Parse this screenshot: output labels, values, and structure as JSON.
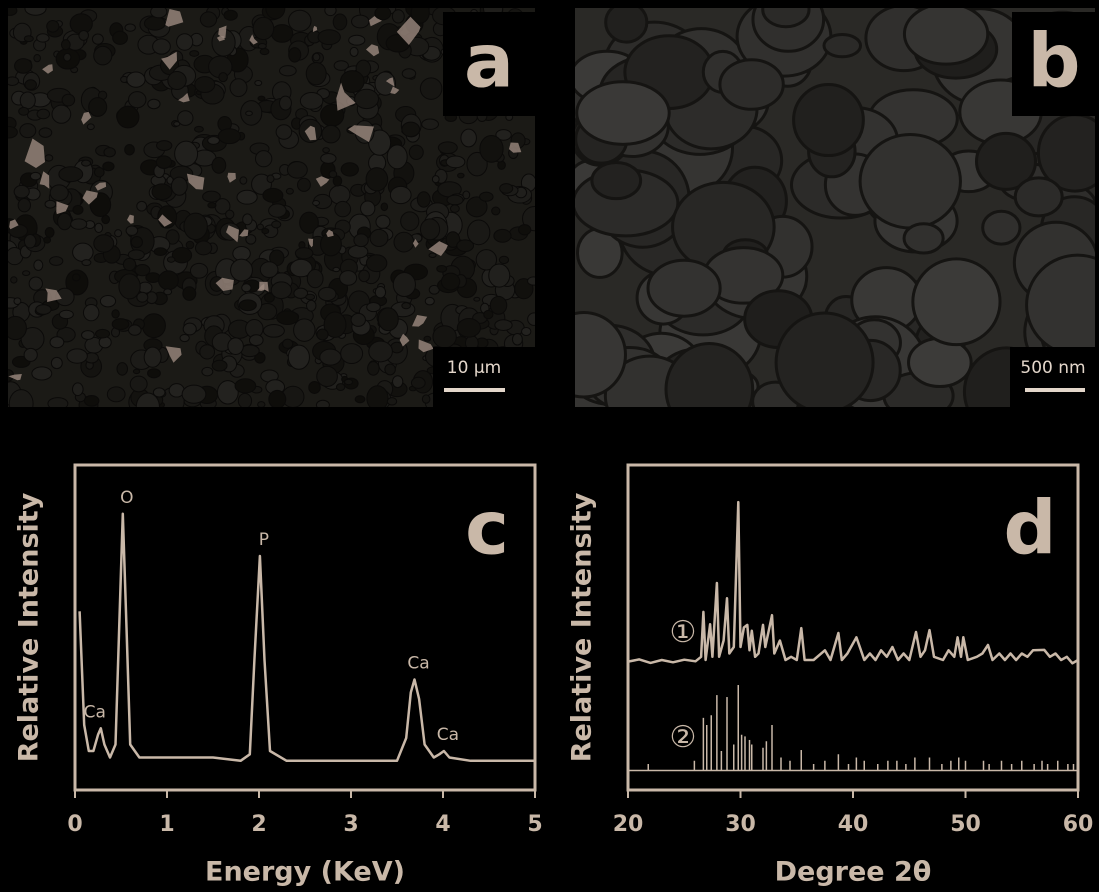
{
  "panels": [
    {
      "label": "a",
      "scale_bar": "10 µm"
    },
    {
      "label": "b",
      "scale_bar": "500 nm"
    }
  ],
  "chart_data": [
    {
      "type": "line",
      "panel": "c",
      "xlabel": "Energy (KeV)",
      "ylabel": "Relative Intensity",
      "color": "#c9b8a8",
      "xlim": [
        0,
        5
      ],
      "xticks": [
        0,
        1,
        2,
        3,
        4,
        5
      ],
      "ylim": [
        0,
        100
      ],
      "x": [
        0.05,
        0.1,
        0.15,
        0.2,
        0.25,
        0.28,
        0.32,
        0.38,
        0.44,
        0.48,
        0.52,
        0.56,
        0.6,
        0.7,
        1.0,
        1.5,
        1.8,
        1.9,
        1.95,
        2.01,
        2.06,
        2.12,
        2.3,
        3.0,
        3.5,
        3.6,
        3.65,
        3.69,
        3.74,
        3.8,
        3.9,
        3.96,
        4.01,
        4.07,
        4.3,
        5.0
      ],
      "values": [
        55,
        20,
        12,
        12,
        17,
        19,
        14,
        10,
        14,
        50,
        85,
        50,
        14,
        10,
        10,
        10,
        9,
        11,
        40,
        72,
        40,
        12,
        9,
        9,
        9,
        16,
        30,
        34,
        28,
        14,
        10,
        11,
        12,
        10,
        9,
        9
      ],
      "annotations": [
        {
          "text": "Ca",
          "x": 0.28
        },
        {
          "text": "O",
          "x": 0.52
        },
        {
          "text": "P",
          "x": 2.01
        },
        {
          "text": "Ca",
          "x": 3.69
        },
        {
          "text": "Ca",
          "x": 4.01
        }
      ]
    },
    {
      "type": "line",
      "panel": "d",
      "xlabel": "Degree 2θ",
      "ylabel": "Relative Intensity",
      "xlim": [
        20,
        60
      ],
      "xticks": [
        20,
        30,
        40,
        50,
        60
      ],
      "ylim": [
        -6,
        94
      ],
      "series": [
        {
          "name": "①",
          "style": "line",
          "color": "#c9b8a8",
          "x": [
            20,
            21,
            22,
            23,
            24,
            25,
            26,
            26.5,
            26.7,
            26.9,
            27.3,
            27.5,
            27.9,
            28.1,
            28.5,
            28.8,
            29.0,
            29.4,
            29.8,
            30.0,
            30.3,
            30.6,
            30.8,
            31.0,
            31.3,
            31.6,
            32.0,
            32.2,
            32.8,
            33.0,
            33.5,
            34,
            34.5,
            35.0,
            35.4,
            35.7,
            36.5,
            37.5,
            38.0,
            38.7,
            39.0,
            39.5,
            40.3,
            40.6,
            41,
            41.5,
            42,
            42.5,
            43,
            43.5,
            44,
            44.5,
            45,
            45.6,
            46,
            46.4,
            46.8,
            47.2,
            48,
            48.5,
            49,
            49.3,
            49.6,
            49.8,
            50.2,
            51,
            51.5,
            52,
            52.4,
            53,
            53.5,
            54,
            54.5,
            55,
            55.5,
            56,
            57,
            57.5,
            58,
            58.5,
            59,
            59.5,
            60
          ],
          "values": [
            33.5,
            34.2,
            33.1,
            34,
            33.3,
            34.1,
            33.6,
            35,
            48.8,
            34,
            45,
            35,
            57.7,
            35,
            40,
            53,
            36,
            38,
            82.6,
            38,
            44,
            44.8,
            37,
            43,
            35,
            36,
            44.8,
            38,
            47.8,
            36,
            40,
            34,
            35,
            34,
            43.8,
            34,
            34,
            37,
            34,
            42.3,
            34,
            36,
            41,
            38,
            34,
            36,
            34,
            37,
            35,
            38,
            34,
            36,
            34,
            42.6,
            35,
            37,
            43.2,
            35,
            34,
            37,
            35,
            41,
            35,
            41,
            34,
            35,
            36,
            38.6,
            34,
            36,
            34,
            36,
            34,
            36,
            35,
            37,
            37.1,
            35,
            36,
            34,
            35,
            33,
            34
          ]
        },
        {
          "name": "②",
          "style": "stem",
          "color": "#c9b8a8",
          "x": [
            21.8,
            25.9,
            26.7,
            27.0,
            27.4,
            27.9,
            28.3,
            28.8,
            29.4,
            29.8,
            30.1,
            30.4,
            30.8,
            31.0,
            32.0,
            32.3,
            32.8,
            33.6,
            34.4,
            35.4,
            36.5,
            37.5,
            38.7,
            39.6,
            40.3,
            41.0,
            42.2,
            43.1,
            43.9,
            44.7,
            45.5,
            46.8,
            47.9,
            48.7,
            49.4,
            50.0,
            51.6,
            52.1,
            53.2,
            54.1,
            55.0,
            56.1,
            56.8,
            57.3,
            58.2,
            59.1,
            59.6
          ],
          "values": [
            2,
            3,
            16.2,
            14,
            17,
            23.2,
            6,
            22.6,
            8,
            26.3,
            11,
            10.5,
            9.4,
            8,
            7,
            9,
            14,
            4,
            3,
            6.3,
            2,
            3,
            5,
            2,
            4,
            3,
            2,
            3,
            3,
            2,
            4,
            4,
            2,
            3,
            4,
            3,
            3,
            2,
            3,
            2,
            3,
            2,
            3,
            2,
            3,
            2,
            2
          ]
        }
      ]
    }
  ]
}
